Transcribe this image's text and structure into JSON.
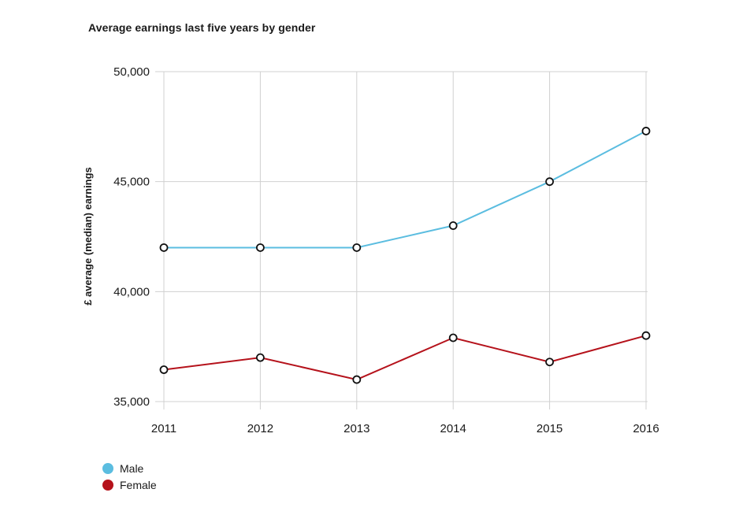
{
  "chart_data": {
    "type": "line",
    "title": "Average earnings last five years by gender",
    "xlabel": "",
    "ylabel": "£ average (median) earnings",
    "categories": [
      "2011",
      "2012",
      "2013",
      "2014",
      "2015",
      "2016"
    ],
    "y_ticks": [
      "35,000",
      "40,000",
      "45,000",
      "50,000"
    ],
    "ylim": [
      35000,
      50000
    ],
    "grid": true,
    "legend_position": "bottom-left",
    "series": [
      {
        "name": "Male",
        "color": "#5bbde0",
        "values": [
          42000,
          42000,
          42000,
          43000,
          45000,
          47300
        ]
      },
      {
        "name": "Female",
        "color": "#b5121b",
        "values": [
          36450,
          37000,
          36000,
          37900,
          36800,
          38000
        ]
      }
    ]
  }
}
